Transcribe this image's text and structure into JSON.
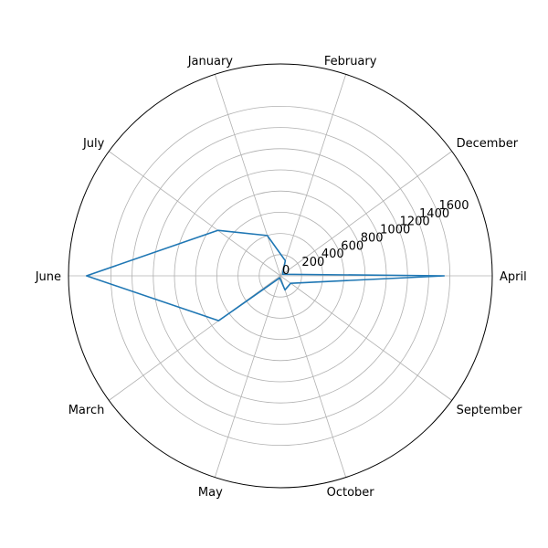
{
  "chart_data": {
    "type": "line",
    "projection": "polar",
    "categories": [
      "April",
      "December",
      "February",
      "January",
      "July",
      "June",
      "March",
      "May",
      "October",
      "September"
    ],
    "series": [
      {
        "values": [
          1550,
          25,
          150,
          400,
          730,
          1830,
          720,
          20,
          140,
          120
        ],
        "color": "#1f77b4"
      }
    ],
    "rlim": [
      0,
      2000
    ],
    "rticks": [
      0,
      200,
      400,
      600,
      800,
      1000,
      1200,
      1400,
      1600
    ],
    "rtick_labels": [
      "0",
      "200",
      "400",
      "600",
      "800",
      "1000",
      "1200",
      "1400",
      "1600"
    ],
    "grid": true,
    "title": "",
    "legend": false
  }
}
